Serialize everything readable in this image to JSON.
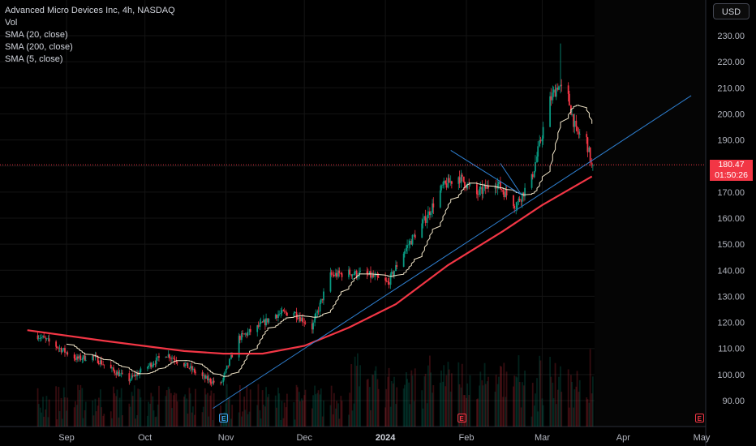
{
  "header": {
    "symbol_line": "Advanced Micro Devices Inc, 4h, NASDAQ",
    "indicators": [
      "Vol",
      "SMA (20, close)",
      "SMA (200, close)",
      "SMA (5, close)"
    ]
  },
  "currency_button": "USD",
  "price_scale": {
    "ticks": [
      "230.00",
      "220.00",
      "210.00",
      "200.00",
      "190.00",
      "180.00",
      "170.00",
      "160.00",
      "150.00",
      "140.00",
      "130.00",
      "120.00",
      "110.00",
      "100.00",
      "90.00"
    ]
  },
  "time_scale": {
    "labels": [
      "Sep",
      "Oct",
      "Nov",
      "Dec",
      "2024",
      "Feb",
      "Mar",
      "Apr",
      "May"
    ],
    "bold_label": "2024"
  },
  "last_price": {
    "price": "180.47",
    "countdown": "01:50:26"
  },
  "earnings_markers": [
    {
      "label": "E",
      "color": "#42a5f5"
    },
    {
      "label": "E",
      "color": "#f23645"
    },
    {
      "label": "E",
      "color": "#f23645"
    }
  ],
  "colors": {
    "up": "#089981",
    "down": "#f23645",
    "sma200": "#f23645",
    "sma20": "#f2e6c9",
    "trendline": "#2962ff",
    "price_line": "#f23645"
  },
  "chart_data": {
    "type": "candlestick",
    "title": "Advanced Micro Devices Inc, 4h, NASDAQ",
    "currency": "USD",
    "ylim": [
      84,
      240
    ],
    "y_ticks": [
      90,
      100,
      110,
      120,
      130,
      140,
      150,
      160,
      170,
      180,
      190,
      200,
      210,
      220,
      230
    ],
    "x_labels": [
      "Sep",
      "Oct",
      "Nov",
      "Dec",
      "2024",
      "Feb",
      "Mar",
      "Apr",
      "May"
    ],
    "last_price": 180.47,
    "price_path": [
      [
        "2023-08-21",
        115
      ],
      [
        "2023-08-28",
        111
      ],
      [
        "2023-09-05",
        106
      ],
      [
        "2023-09-11",
        107
      ],
      [
        "2023-09-18",
        102
      ],
      [
        "2023-09-25",
        98
      ],
      [
        "2023-10-02",
        103
      ],
      [
        "2023-10-09",
        108
      ],
      [
        "2023-10-16",
        104
      ],
      [
        "2023-10-23",
        99
      ],
      [
        "2023-10-30",
        96
      ],
      [
        "2023-11-06",
        114
      ],
      [
        "2023-11-13",
        118
      ],
      [
        "2023-11-20",
        123
      ],
      [
        "2023-11-27",
        124
      ],
      [
        "2023-12-04",
        118
      ],
      [
        "2023-12-11",
        138
      ],
      [
        "2023-12-18",
        139
      ],
      [
        "2023-12-26",
        138
      ],
      [
        "2024-01-02",
        135
      ],
      [
        "2024-01-08",
        147
      ],
      [
        "2024-01-16",
        159
      ],
      [
        "2024-01-23",
        172
      ],
      [
        "2024-01-29",
        176
      ],
      [
        "2024-02-05",
        169
      ],
      [
        "2024-02-12",
        174
      ],
      [
        "2024-02-20",
        165
      ],
      [
        "2024-02-26",
        175
      ],
      [
        "2024-03-04",
        205
      ],
      [
        "2024-03-07",
        211
      ],
      [
        "2024-03-11",
        206
      ],
      [
        "2024-03-14",
        193
      ],
      [
        "2024-03-18",
        190
      ],
      [
        "2024-03-20",
        180
      ]
    ],
    "series": [
      {
        "name": "SMA (200, close)",
        "values": [
          [
            "2023-08-17",
            117
          ],
          [
            "2023-09-15",
            113
          ],
          [
            "2023-10-16",
            109
          ],
          [
            "2023-10-31",
            108
          ],
          [
            "2023-11-15",
            108
          ],
          [
            "2023-12-01",
            111
          ],
          [
            "2023-12-18",
            118
          ],
          [
            "2024-01-05",
            127
          ],
          [
            "2024-01-25",
            142
          ],
          [
            "2024-02-15",
            155
          ],
          [
            "2024-03-01",
            165
          ],
          [
            "2024-03-20",
            176
          ]
        ]
      },
      {
        "name": "Vol",
        "values": []
      }
    ],
    "annotations": [
      {
        "type": "trendline",
        "from": [
          "2023-10-27",
          87
        ],
        "to": [
          "2024-04-27",
          207
        ]
      },
      {
        "type": "triangle",
        "points": [
          [
            "2024-01-26",
            186
          ],
          [
            "2024-02-22",
            169
          ],
          [
            "2024-02-14",
            181
          ]
        ]
      }
    ]
  }
}
